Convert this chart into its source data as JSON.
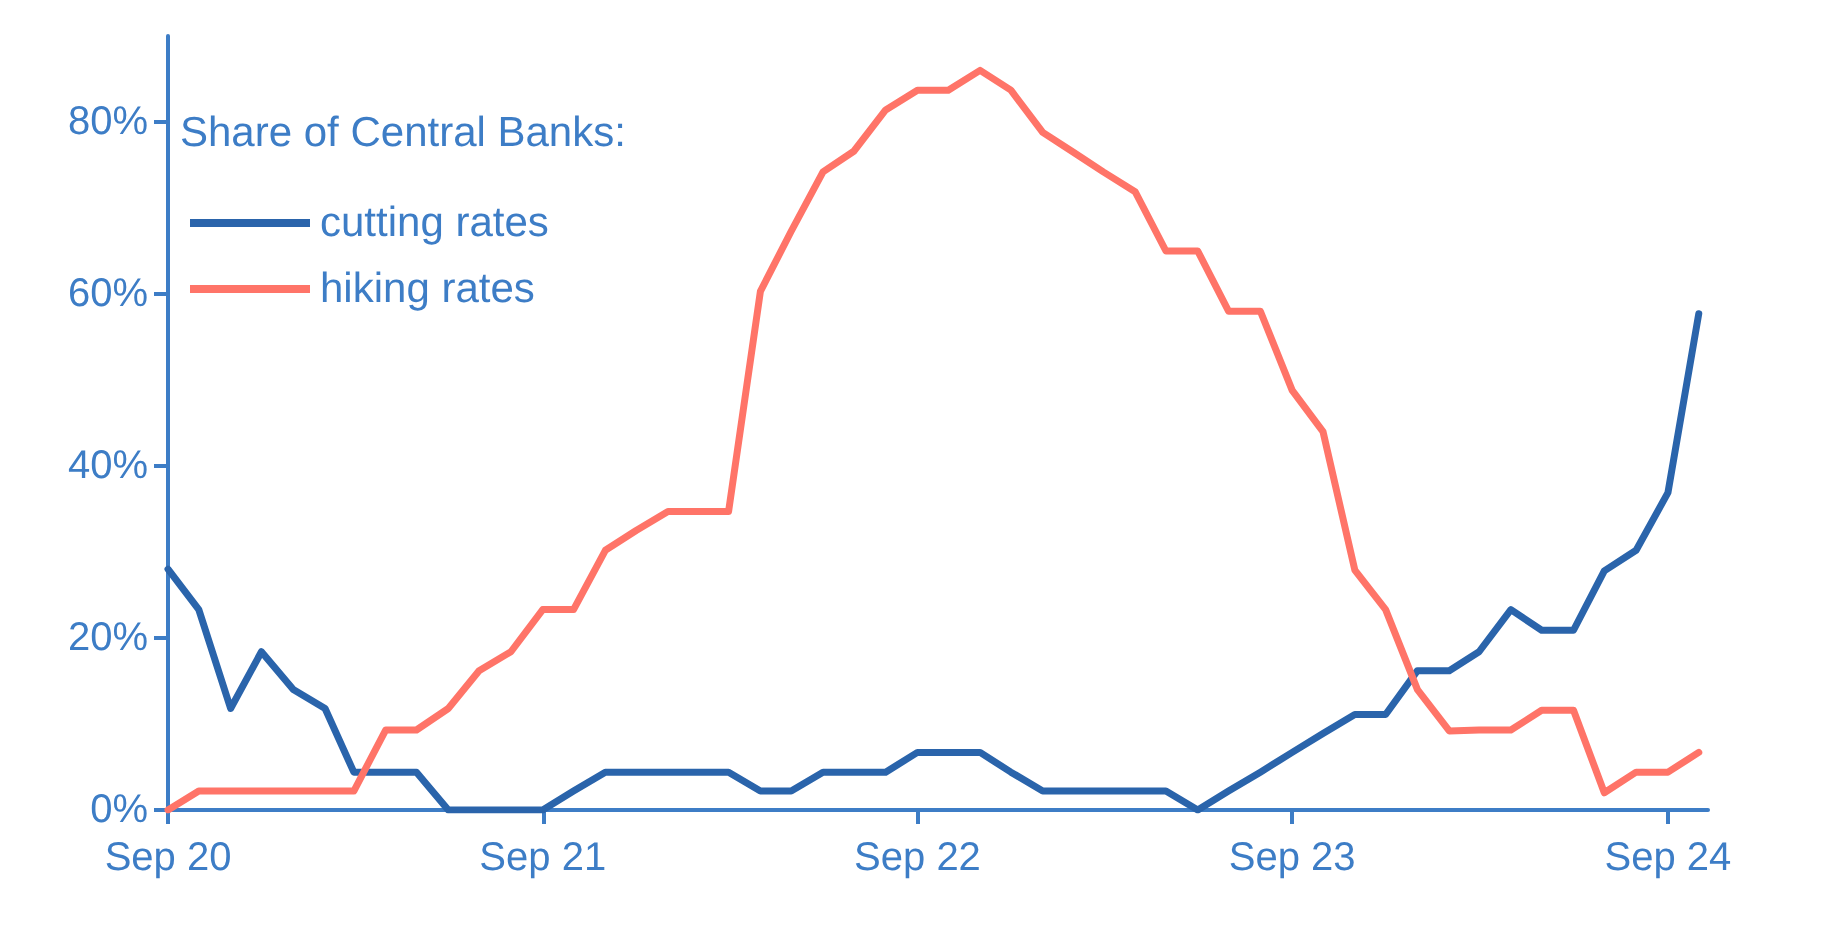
{
  "chart_data": {
    "type": "line",
    "legend_title": "Share of Central Banks:",
    "legend": "top left",
    "grid": false,
    "marker": "none",
    "line_style": "solid",
    "x": [
      "2020-09",
      "2020-10",
      "2020-11",
      "2020-12",
      "2021-01",
      "2021-02",
      "2021-03",
      "2021-04",
      "2021-05",
      "2021-06",
      "2021-07",
      "2021-08",
      "2021-09",
      "2021-10",
      "2021-11",
      "2021-12",
      "2022-01",
      "2022-02",
      "2022-03",
      "2022-04",
      "2022-05",
      "2022-06",
      "2022-07",
      "2022-08",
      "2022-09",
      "2022-10",
      "2022-11",
      "2022-12",
      "2023-01",
      "2023-02",
      "2023-03",
      "2023-04",
      "2023-05",
      "2023-06",
      "2023-07",
      "2023-08",
      "2023-09",
      "2023-10",
      "2023-11",
      "2023-12",
      "2024-01",
      "2024-02",
      "2024-03",
      "2024-04",
      "2024-05",
      "2024-06",
      "2024-07",
      "2024-08",
      "2024-09",
      "2024-10"
    ],
    "series": [
      {
        "name": "cutting rates",
        "color": "#2a64ab",
        "values": [
          28,
          23.3,
          11.8,
          18.4,
          14,
          11.8,
          4.4,
          4.4,
          4.4,
          0,
          0,
          0,
          0,
          2.2,
          4.4,
          4.4,
          4.4,
          4.4,
          4.4,
          2.2,
          2.2,
          4.4,
          4.4,
          4.4,
          6.7,
          6.7,
          6.7,
          4.4,
          2.2,
          2.2,
          2.2,
          2.2,
          2.2,
          0,
          2.2,
          4.4,
          6.7,
          8.9,
          11.1,
          11.1,
          16.2,
          16.2,
          18.4,
          23.3,
          20.9,
          20.9,
          27.8,
          30.2,
          36.9,
          57.7
        ]
      },
      {
        "name": "hiking rates",
        "color": "#ff7468",
        "values": [
          0,
          2.2,
          2.2,
          2.2,
          2.2,
          2.2,
          2.2,
          9.3,
          9.3,
          11.8,
          16.2,
          18.4,
          23.3,
          23.3,
          30.2,
          32.5,
          34.7,
          34.7,
          34.7,
          60.3,
          67.3,
          74.2,
          76.6,
          81.4,
          83.7,
          83.7,
          86,
          83.7,
          78.8,
          76.4,
          74.2,
          71.9,
          65,
          65,
          58,
          58,
          48.8,
          44,
          27.9,
          23.3,
          14,
          9.2,
          9.3,
          9.3,
          11.6,
          11.6,
          2,
          4.4,
          4.4,
          6.7
        ]
      }
    ],
    "xlim": [
      "2020-09",
      "2024-10-10"
    ],
    "xticks": [
      {
        "value": "2020-09",
        "label": "Sep 20"
      },
      {
        "value": "2021-09",
        "label": "Sep 21"
      },
      {
        "value": "2022-09",
        "label": "Sep 22"
      },
      {
        "value": "2023-09",
        "label": "Sep 23"
      },
      {
        "value": "2024-09",
        "label": "Sep 24"
      }
    ],
    "ylim": [
      0,
      90
    ],
    "yticks": [
      {
        "value": 0,
        "label": "0%"
      },
      {
        "value": 20,
        "label": "20%"
      },
      {
        "value": 40,
        "label": "40%"
      },
      {
        "value": 60,
        "label": "60%"
      },
      {
        "value": 80,
        "label": "80%"
      }
    ]
  }
}
